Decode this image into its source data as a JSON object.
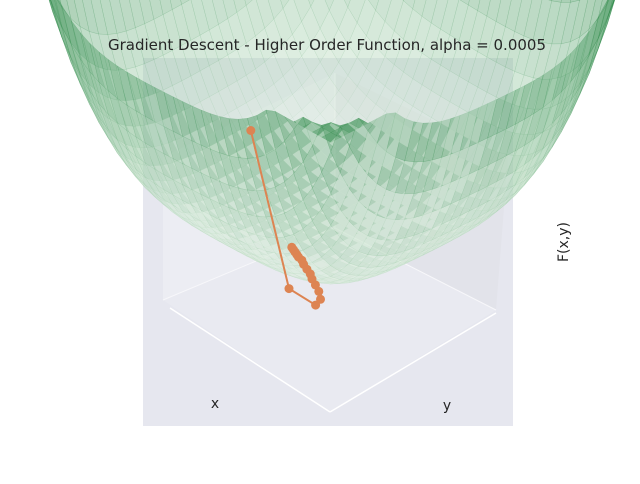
{
  "chart_data": {
    "type": "surface3d",
    "title": "Gradient Descent - Higher Order Function, alpha = 0.0005",
    "xlabel": "x",
    "ylabel": "y",
    "zlabel": "F(x,y)",
    "surface": {
      "colormap": "Greens",
      "alpha": 0.45,
      "grid_lines": 36
    },
    "path": {
      "color": "#dd8452",
      "marker": "circle",
      "x": [
        0.52,
        0.5,
        0.5,
        0.44,
        0.37,
        0.31,
        0.26,
        0.22,
        0.18,
        0.14,
        0.11,
        0.08,
        0.06,
        0.04,
        0.02,
        0.0
      ],
      "y": [
        1.0,
        0.75,
        0.59,
        0.5,
        0.44,
        0.4,
        0.37,
        0.34,
        0.32,
        0.3,
        0.28,
        0.27,
        0.26,
        0.25,
        0.24,
        0.23
      ],
      "z": [
        0.92,
        0.2,
        0.08,
        0.05,
        0.035,
        0.025,
        0.02,
        0.015,
        0.012,
        0.01,
        0.008,
        0.006,
        0.005,
        0.004,
        0.003,
        0.002
      ]
    }
  },
  "colors": {
    "pane_background": "#e6e7ef",
    "path": "#dd8452",
    "surface_low": "#edf8ec",
    "surface_high": "#2e8a4a"
  }
}
